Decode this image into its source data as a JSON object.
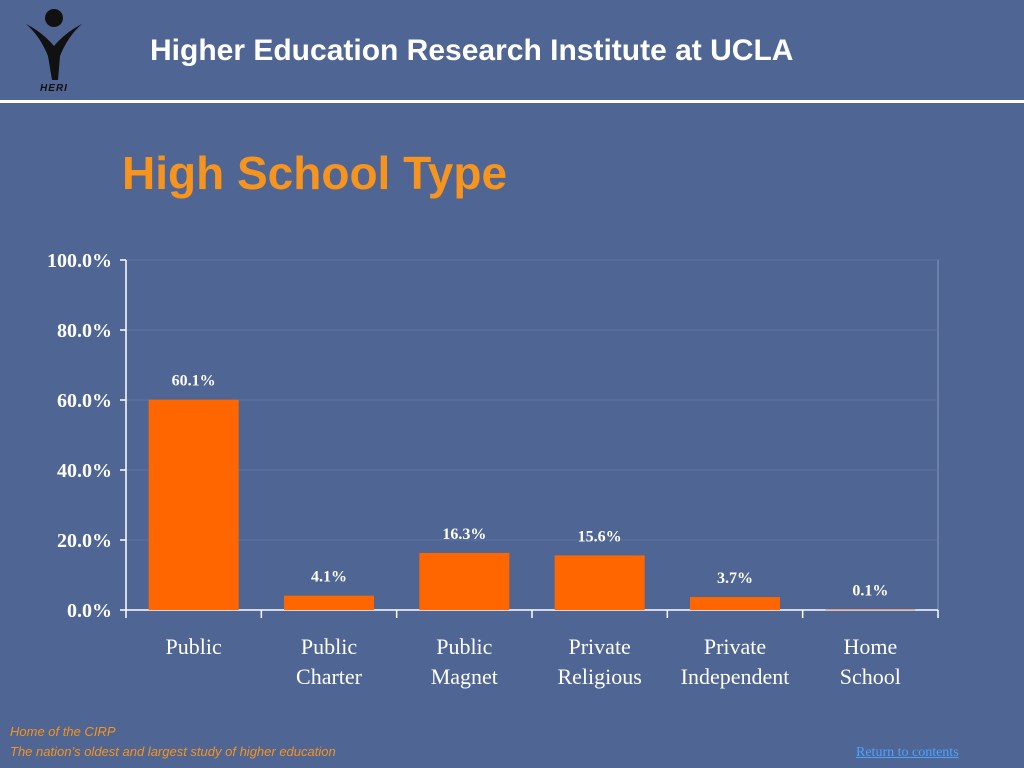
{
  "header": {
    "title": "Higher Education Research Institute at UCLA",
    "logo_text": "HERI"
  },
  "slide": {
    "title": "High School Type"
  },
  "chart_data": {
    "type": "bar",
    "categories": [
      [
        "Public"
      ],
      [
        "Public",
        "Charter"
      ],
      [
        "Public",
        "Magnet"
      ],
      [
        "Private",
        "Religious"
      ],
      [
        "Private",
        "Independent"
      ],
      [
        "Home",
        "School"
      ]
    ],
    "values": [
      60.1,
      4.1,
      16.3,
      15.6,
      3.7,
      0.1
    ],
    "data_labels": [
      "60.1%",
      "4.1%",
      "16.3%",
      "15.6%",
      "3.7%",
      "0.1%"
    ],
    "y_ticks": [
      0,
      20,
      40,
      60,
      80,
      100
    ],
    "y_tick_labels": [
      "0.0%",
      "20.0%",
      "40.0%",
      "60.0%",
      "80.0%",
      "100.0%"
    ],
    "ylim": [
      0,
      100
    ],
    "grid": true,
    "bar_color": "#ff6600",
    "axis_color": "#ffffff"
  },
  "footer": {
    "home": "Home of the CIRP",
    "tagline": "The nation’s oldest and largest study of higher education",
    "return_link": "Return to contents"
  },
  "colors": {
    "background": "#4f6593",
    "title_accent": "#f7941d",
    "link": "#4da3ff"
  }
}
